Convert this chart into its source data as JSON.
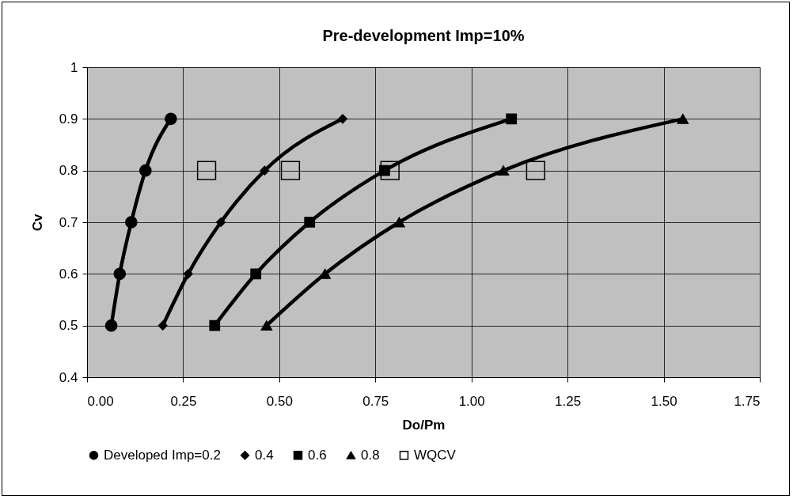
{
  "chart_data": {
    "type": "line",
    "title": "Pre-development Imp=10%",
    "xlabel": "Do/Pm",
    "ylabel": "Cv",
    "xlim": [
      0,
      1.75
    ],
    "ylim": [
      0.4,
      1
    ],
    "xticks": [
      {
        "value": 0,
        "label": "0.00"
      },
      {
        "value": 0.25,
        "label": "0.25"
      },
      {
        "value": 0.5,
        "label": "0.50"
      },
      {
        "value": 0.75,
        "label": "0.75"
      },
      {
        "value": 1,
        "label": "1.00"
      },
      {
        "value": 1.25,
        "label": "1.25"
      },
      {
        "value": 1.5,
        "label": "1.50"
      },
      {
        "value": 1.75,
        "label": "1.75"
      }
    ],
    "yticks": [
      0.4,
      0.5,
      0.6,
      0.7,
      0.8,
      0.9,
      1
    ],
    "grid": true,
    "legend": "bottom",
    "line_style": "solid",
    "series": [
      {
        "name": "Developed Imp=0.2",
        "color": "#000000",
        "marker": "circle",
        "x": [
          0.063,
          0.085,
          0.115,
          0.152,
          0.218
        ],
        "values": [
          0.5,
          0.6,
          0.7,
          0.8,
          0.9
        ]
      },
      {
        "name": "0.4",
        "color": "#000000",
        "marker": "diamond",
        "x": [
          0.197,
          0.263,
          0.348,
          0.462,
          0.665
        ],
        "values": [
          0.5,
          0.6,
          0.7,
          0.8,
          0.9
        ]
      },
      {
        "name": "0.6",
        "color": "#000000",
        "marker": "square",
        "x": [
          0.332,
          0.439,
          0.579,
          0.774,
          1.104
        ],
        "values": [
          0.5,
          0.6,
          0.7,
          0.8,
          0.9
        ]
      },
      {
        "name": "0.8",
        "color": "#000000",
        "marker": "triangle",
        "x": [
          0.467,
          0.619,
          0.812,
          1.083,
          1.55
        ],
        "values": [
          0.5,
          0.6,
          0.7,
          0.8,
          0.9
        ]
      },
      {
        "name": "WQCV",
        "color": "#000000",
        "type": "scatter",
        "marker": "square",
        "x": [
          0.311,
          0.529,
          0.788,
          1.167
        ],
        "values": [
          0.8,
          0.8,
          0.8,
          0.8
        ]
      }
    ]
  }
}
